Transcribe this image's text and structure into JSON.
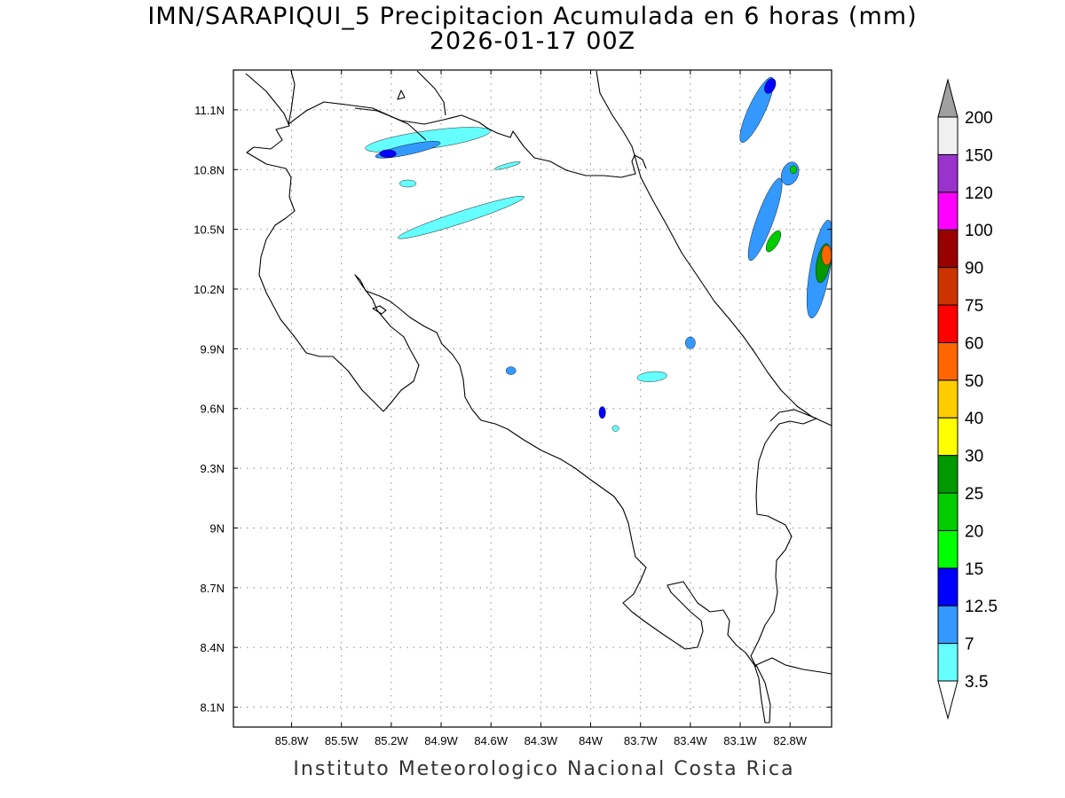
{
  "title": {
    "line1": "IMN/SARAPIQUI_5 Precipitacion Acumulada en 6 horas (mm)",
    "line2": "2026-01-17 00Z"
  },
  "credit": "Instituto Meteorologico Nacional Costa Rica",
  "map": {
    "lon_range": [
      -86.15,
      -82.55
    ],
    "lat_range": [
      8.0,
      11.3
    ],
    "lon_ticks": [
      {
        "lon": -85.8,
        "label": "85.8W"
      },
      {
        "lon": -85.5,
        "label": "85.5W"
      },
      {
        "lon": -85.2,
        "label": "85.2W"
      },
      {
        "lon": -84.9,
        "label": "84.9W"
      },
      {
        "lon": -84.6,
        "label": "84.6W"
      },
      {
        "lon": -84.3,
        "label": "84.3W"
      },
      {
        "lon": -84.0,
        "label": "84W"
      },
      {
        "lon": -83.7,
        "label": "83.7W"
      },
      {
        "lon": -83.4,
        "label": "83.4W"
      },
      {
        "lon": -83.1,
        "label": "83.1W"
      },
      {
        "lon": -82.8,
        "label": "82.8W"
      }
    ],
    "lat_ticks": [
      {
        "lat": 11.1,
        "label": "11.1N"
      },
      {
        "lat": 10.8,
        "label": "10.8N"
      },
      {
        "lat": 10.5,
        "label": "10.5N"
      },
      {
        "lat": 10.2,
        "label": "10.2N"
      },
      {
        "lat": 9.9,
        "label": "9.9N"
      },
      {
        "lat": 9.6,
        "label": "9.6N"
      },
      {
        "lat": 9.3,
        "label": "9.3N"
      },
      {
        "lat": 9.0,
        "label": "9N"
      },
      {
        "lat": 8.7,
        "label": "8.7N"
      },
      {
        "lat": 8.4,
        "label": "8.4N"
      },
      {
        "lat": 8.1,
        "label": "8.1N"
      }
    ],
    "grid": true,
    "precip_cells": [
      {
        "lon": -84.78,
        "lat": 10.56,
        "rx": 0.4,
        "ry": 0.03,
        "rot": -18,
        "level": 0
      },
      {
        "lon": -84.98,
        "lat": 10.95,
        "rx": 0.38,
        "ry": 0.045,
        "rot": -8,
        "level": 0
      },
      {
        "lon": -85.1,
        "lat": 10.9,
        "rx": 0.2,
        "ry": 0.025,
        "rot": -12,
        "level": 1
      },
      {
        "lon": -85.22,
        "lat": 10.88,
        "rx": 0.05,
        "ry": 0.02,
        "rot": 0,
        "level": 2
      },
      {
        "lon": -85.1,
        "lat": 10.73,
        "rx": 0.05,
        "ry": 0.018,
        "rot": 0,
        "level": 0
      },
      {
        "lon": -84.5,
        "lat": 10.82,
        "rx": 0.08,
        "ry": 0.01,
        "rot": -15,
        "level": 0
      },
      {
        "lon": -83.4,
        "lat": 9.93,
        "rx": 0.03,
        "ry": 0.03,
        "rot": 0,
        "level": 1
      },
      {
        "lon": -83.63,
        "lat": 9.76,
        "rx": 0.09,
        "ry": 0.025,
        "rot": -5,
        "level": 0
      },
      {
        "lon": -84.48,
        "lat": 9.79,
        "rx": 0.03,
        "ry": 0.02,
        "rot": 0,
        "level": 1
      },
      {
        "lon": -83.93,
        "lat": 9.58,
        "rx": 0.02,
        "ry": 0.03,
        "rot": 0,
        "level": 2
      },
      {
        "lon": -83.85,
        "lat": 9.5,
        "rx": 0.02,
        "ry": 0.015,
        "rot": 0,
        "level": 0
      },
      {
        "lon": -82.95,
        "lat": 10.55,
        "rx": 0.05,
        "ry": 0.22,
        "rot": 20,
        "level": 1
      },
      {
        "lon": -82.9,
        "lat": 10.44,
        "rx": 0.03,
        "ry": 0.06,
        "rot": 30,
        "level": 4
      },
      {
        "lon": -82.62,
        "lat": 10.3,
        "rx": 0.06,
        "ry": 0.25,
        "rot": 10,
        "level": 1
      },
      {
        "lon": -82.6,
        "lat": 10.33,
        "rx": 0.04,
        "ry": 0.1,
        "rot": 10,
        "level": 5
      },
      {
        "lon": -82.58,
        "lat": 10.37,
        "rx": 0.03,
        "ry": 0.05,
        "rot": 0,
        "level": 8
      },
      {
        "lon": -83.0,
        "lat": 11.1,
        "rx": 0.05,
        "ry": 0.18,
        "rot": 25,
        "level": 1
      },
      {
        "lon": -82.92,
        "lat": 11.22,
        "rx": 0.03,
        "ry": 0.04,
        "rot": 25,
        "level": 2
      },
      {
        "lon": -82.8,
        "lat": 10.78,
        "rx": 0.05,
        "ry": 0.06,
        "rot": 20,
        "level": 1
      },
      {
        "lon": -82.78,
        "lat": 10.8,
        "rx": 0.02,
        "ry": 0.02,
        "rot": 0,
        "level": 4
      }
    ]
  },
  "colorbar": {
    "labels": [
      "3.5",
      "7",
      "12.5",
      "15",
      "20",
      "25",
      "30",
      "40",
      "50",
      "60",
      "75",
      "90",
      "100",
      "120",
      "150",
      "200"
    ],
    "colors": [
      "#66ffff",
      "#3399ff",
      "#0000ff",
      "#00ff00",
      "#00cc00",
      "#009900",
      "#ffff00",
      "#ffcc00",
      "#ff6600",
      "#ff0000",
      "#cc3300",
      "#990000",
      "#ff00ff",
      "#9933cc",
      "#f0f0f0"
    ],
    "max_arrow_color": "#a0a0a0",
    "min_arrow_color": "#ffffff"
  }
}
